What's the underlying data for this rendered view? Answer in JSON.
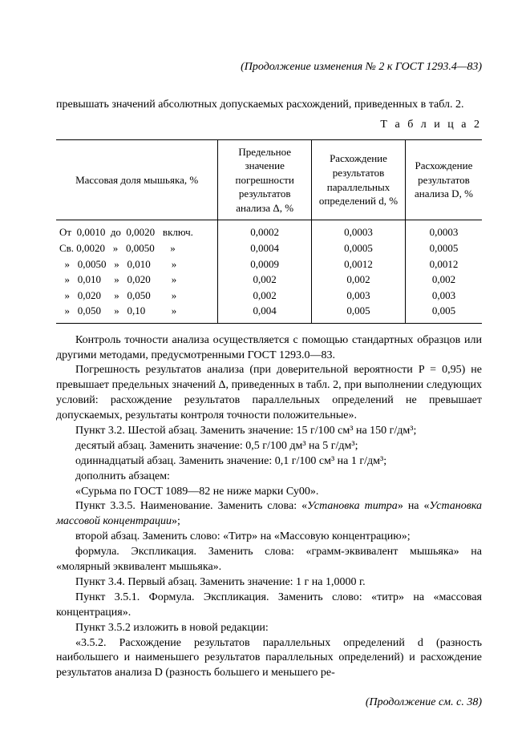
{
  "header": "(Продолжение изменения № 2 к  ГОСТ  1293.4—83)",
  "intro": "превышать значений абсолютных допускаемых расхождений, приведенных в табл. 2.",
  "tableLabel": "Т а б л и ц а  2",
  "tableHeaders": {
    "c1": "Массовая доля мышьяка,  %",
    "c2": "Предельное значение погрешности результатов анализа Δ, %",
    "c3": "Расхождение результатов параллельных определений  d, %",
    "c4": "Расхождение результатов анализа  D, %"
  },
  "rows": [
    {
      "a": "От  0,0010  до  0,0020   включ.",
      "b": "0,0002",
      "c": "0,0003",
      "d": "0,0003"
    },
    {
      "a": "Св. 0,0020   »   0,0050      »",
      "b": "0,0004",
      "c": "0,0005",
      "d": "0,0005"
    },
    {
      "a": "  »   0,0050   »   0,010        »",
      "b": "0,0009",
      "c": "0,0012",
      "d": "0,0012"
    },
    {
      "a": "  »   0,010     »   0,020        »",
      "b": "0,002",
      "c": "0,002",
      "d": "0,002"
    },
    {
      "a": "  »   0,020     »   0,050        »",
      "b": "0,002",
      "c": "0,003",
      "d": "0,003"
    },
    {
      "a": "  »   0,050     »   0,10          »",
      "b": "0,004",
      "c": "0,005",
      "d": "0,005"
    }
  ],
  "paragraphs": [
    "Контроль точности анализа осуществляется с помощью стандартных образцов или другими методами, предусмотренными ГОСТ 1293.0—83.",
    "Погрешность результатов анализа  (при доверительной вероятности P = 0,95) не превышает предельных  значений Δ, приведенных в табл. 2, при выполнении следующих условий: расхождение результатов параллельных определений не превышает допускаемых,   результаты контроля точности положительные».",
    "Пункт 3.2. Шестой абзац. Заменить значение: 15 г/100 см³ на 150 г/дм³;",
    "десятый абзац. Заменить значение: 0,5 г/100 дм³ на 5 г/дм³;",
    "одиннадцатый абзац. Заменить значение: 0,1 г/100 см³ на 1 г/дм³;",
    "дополнить абзацем:",
    "«Сурьма по ГОСТ 1089—82 не ниже марки Су00».",
    "Пункт 3.3.5. Наименование. Заменить слова: «Установка титра» на «Установка массовой концентрации»;",
    "второй абзац. Заменить слово: «Титр» на «Массовую концентрацию»;",
    "формула. Экспликация. Заменить слова: «грамм-эквивалент мышьяка» на «молярный эквивалент мышьяка».",
    "Пункт 3.4. Первый абзац. Заменить значение: 1 г на 1,0000 г.",
    "Пункт 3.5.1. Формула. Экспликация. Заменить слово: «титр» на «массовая концентрация».",
    "Пункт 3.5.2 изложить в новой редакции:",
    "«3.5.2. Расхождение результатов параллельных определений d (разность наибольшего и наименьшего результатов параллельных определений) и расхождение результатов анализа D (разность большего и меньшего ре-"
  ],
  "footer": "(Продолжение см. с. 38)"
}
